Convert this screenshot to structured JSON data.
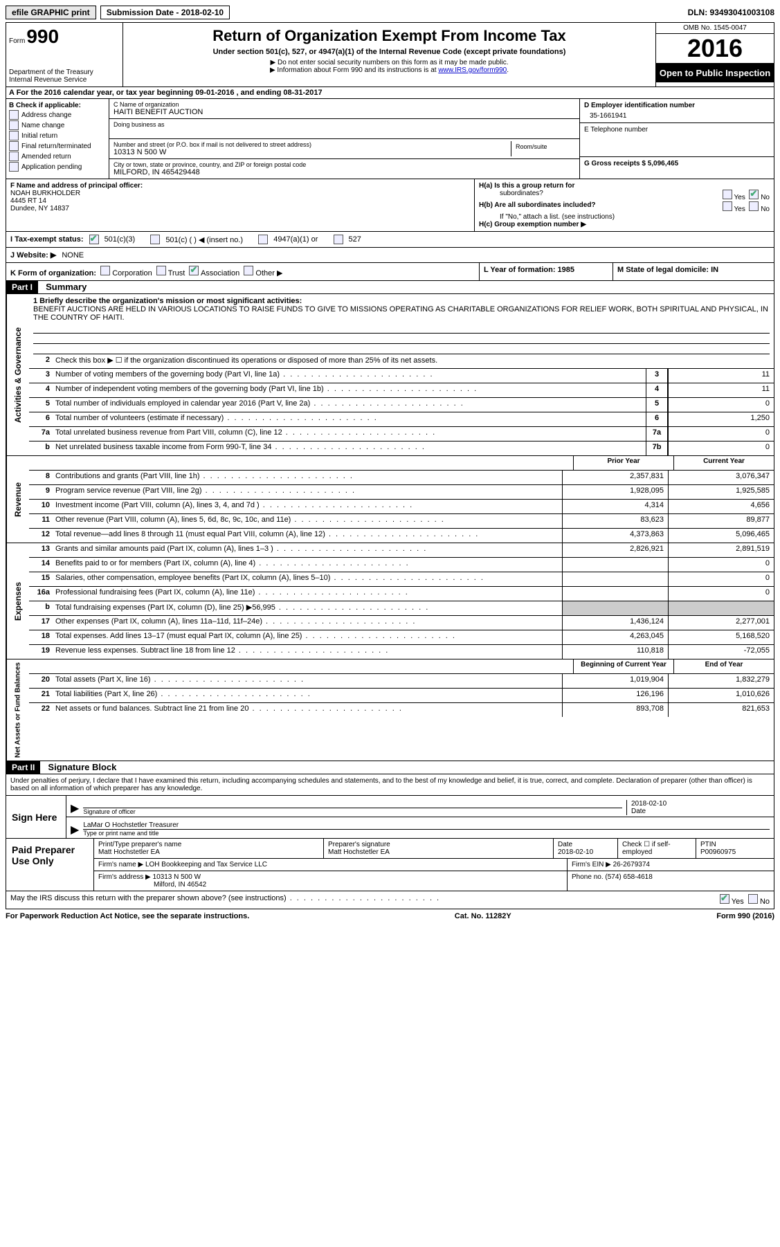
{
  "topbar": {
    "efile": "efile GRAPHIC print",
    "submission_label": "Submission Date - 2018-02-10",
    "dln": "DLN: 93493041003108"
  },
  "header": {
    "form_prefix": "Form",
    "form_no": "990",
    "dept1": "Department of the Treasury",
    "dept2": "Internal Revenue Service",
    "title": "Return of Organization Exempt From Income Tax",
    "subtitle": "Under section 501(c), 527, or 4947(a)(1) of the Internal Revenue Code (except private foundations)",
    "note1": "▶ Do not enter social security numbers on this form as it may be made public.",
    "note2_pre": "▶ Information about Form 990 and its instructions is at ",
    "note2_link": "www.IRS.gov/form990",
    "omb": "OMB No. 1545-0047",
    "year": "2016",
    "inspect": "Open to Public Inspection"
  },
  "lineA": "A  For the 2016 calendar year, or tax year beginning 09-01-2016   , and ending 08-31-2017",
  "sectionB": {
    "title": "B Check if applicable:",
    "opts": [
      "Address change",
      "Name change",
      "Initial return",
      "Final return/terminated",
      "Amended return",
      "Application pending"
    ]
  },
  "sectionC": {
    "name_lbl": "C Name of organization",
    "name": "HAITI BENEFIT AUCTION",
    "dba_lbl": "Doing business as",
    "street_lbl": "Number and street (or P.O. box if mail is not delivered to street address)",
    "room_lbl": "Room/suite",
    "street": "10313 N 500 W",
    "city_lbl": "City or town, state or province, country, and ZIP or foreign postal code",
    "city": "MILFORD, IN  465429448"
  },
  "sectionD": {
    "ein_lbl": "D Employer identification number",
    "ein": "35-1661941",
    "tel_lbl": "E Telephone number",
    "gross_lbl": "G Gross receipts $ 5,096,465"
  },
  "sectionF": {
    "lbl": "F Name and address of principal officer:",
    "name": "NOAH BURKHOLDER",
    "addr1": "4445 RT 14",
    "addr2": "Dundee, NY  14837"
  },
  "sectionH": {
    "ha": "H(a)  Is this a group return for",
    "ha2": "subordinates?",
    "hb": "H(b)  Are all subordinates included?",
    "hb2": "If \"No,\" attach a list. (see instructions)",
    "hc": "H(c)  Group exemption number ▶",
    "yes": "Yes",
    "no": "No"
  },
  "lineI": {
    "lbl": "I  Tax-exempt status:",
    "o1": "501(c)(3)",
    "o2": "501(c) (  ) ◀ (insert no.)",
    "o3": "4947(a)(1) or",
    "o4": "527"
  },
  "lineJ": {
    "lbl": "J  Website: ▶",
    "val": "NONE"
  },
  "lineK": {
    "lbl": "K Form of organization:",
    "opts": [
      "Corporation",
      "Trust",
      "Association",
      "Other ▶"
    ],
    "L": "L Year of formation: 1985",
    "M": "M State of legal domicile: IN"
  },
  "part1": {
    "hdr": "Part I",
    "title": "Summary"
  },
  "governance": {
    "side": "Activities & Governance",
    "l1_lbl": "1  Briefly describe the organization's mission or most significant activities:",
    "l1_text": "BENEFIT AUCTIONS ARE HELD IN VARIOUS LOCATIONS TO RAISE FUNDS TO GIVE TO MISSIONS OPERATING AS CHARITABLE ORGANIZATIONS FOR RELIEF WORK, BOTH SPIRITUAL AND PHYSICAL, IN THE COUNTRY OF HAITI.",
    "l2": "Check this box ▶ ☐  if the organization discontinued its operations or disposed of more than 25% of its net assets.",
    "rows": [
      {
        "n": "3",
        "d": "Number of voting members of the governing body (Part VI, line 1a)",
        "b": "3",
        "v": "11"
      },
      {
        "n": "4",
        "d": "Number of independent voting members of the governing body (Part VI, line 1b)",
        "b": "4",
        "v": "11"
      },
      {
        "n": "5",
        "d": "Total number of individuals employed in calendar year 2016 (Part V, line 2a)",
        "b": "5",
        "v": "0"
      },
      {
        "n": "6",
        "d": "Total number of volunteers (estimate if necessary)",
        "b": "6",
        "v": "1,250"
      },
      {
        "n": "7a",
        "d": "Total unrelated business revenue from Part VIII, column (C), line 12",
        "b": "7a",
        "v": "0"
      },
      {
        "n": "b",
        "d": "Net unrelated business taxable income from Form 990-T, line 34",
        "b": "7b",
        "v": "0"
      }
    ]
  },
  "revenue": {
    "side": "Revenue",
    "hdr_prior": "Prior Year",
    "hdr_curr": "Current Year",
    "rows": [
      {
        "n": "8",
        "d": "Contributions and grants (Part VIII, line 1h)",
        "p": "2,357,831",
        "c": "3,076,347"
      },
      {
        "n": "9",
        "d": "Program service revenue (Part VIII, line 2g)",
        "p": "1,928,095",
        "c": "1,925,585"
      },
      {
        "n": "10",
        "d": "Investment income (Part VIII, column (A), lines 3, 4, and 7d )",
        "p": "4,314",
        "c": "4,656"
      },
      {
        "n": "11",
        "d": "Other revenue (Part VIII, column (A), lines 5, 6d, 8c, 9c, 10c, and 11e)",
        "p": "83,623",
        "c": "89,877"
      },
      {
        "n": "12",
        "d": "Total revenue—add lines 8 through 11 (must equal Part VIII, column (A), line 12)",
        "p": "4,373,863",
        "c": "5,096,465"
      }
    ]
  },
  "expenses": {
    "side": "Expenses",
    "rows": [
      {
        "n": "13",
        "d": "Grants and similar amounts paid (Part IX, column (A), lines 1–3 )",
        "p": "2,826,921",
        "c": "2,891,519"
      },
      {
        "n": "14",
        "d": "Benefits paid to or for members (Part IX, column (A), line 4)",
        "p": "",
        "c": "0"
      },
      {
        "n": "15",
        "d": "Salaries, other compensation, employee benefits (Part IX, column (A), lines 5–10)",
        "p": "",
        "c": "0"
      },
      {
        "n": "16a",
        "d": "Professional fundraising fees (Part IX, column (A), line 11e)",
        "p": "",
        "c": "0"
      },
      {
        "n": "b",
        "d": "Total fundraising expenses (Part IX, column (D), line 25) ▶56,995",
        "p": "gray",
        "c": "gray"
      },
      {
        "n": "17",
        "d": "Other expenses (Part IX, column (A), lines 11a–11d, 11f–24e)",
        "p": "1,436,124",
        "c": "2,277,001"
      },
      {
        "n": "18",
        "d": "Total expenses. Add lines 13–17 (must equal Part IX, column (A), line 25)",
        "p": "4,263,045",
        "c": "5,168,520"
      },
      {
        "n": "19",
        "d": "Revenue less expenses. Subtract line 18 from line 12",
        "p": "110,818",
        "c": "-72,055"
      }
    ]
  },
  "netassets": {
    "side": "Net Assets or Fund Balances",
    "hdr_prior": "Beginning of Current Year",
    "hdr_curr": "End of Year",
    "rows": [
      {
        "n": "20",
        "d": "Total assets (Part X, line 16)",
        "p": "1,019,904",
        "c": "1,832,279"
      },
      {
        "n": "21",
        "d": "Total liabilities (Part X, line 26)",
        "p": "126,196",
        "c": "1,010,626"
      },
      {
        "n": "22",
        "d": "Net assets or fund balances. Subtract line 21 from line 20",
        "p": "893,708",
        "c": "821,653"
      }
    ]
  },
  "part2": {
    "hdr": "Part II",
    "title": "Signature Block"
  },
  "sign": {
    "decl": "Under penalties of perjury, I declare that I have examined this return, including accompanying schedules and statements, and to the best of my knowledge and belief, it is true, correct, and complete. Declaration of preparer (other than officer) is based on all information of which preparer has any knowledge.",
    "here": "Sign Here",
    "sig_lbl": "Signature of officer",
    "date_lbl": "Date",
    "date": "2018-02-10",
    "name": "LaMar O Hochstetler Treasurer",
    "name_lbl": "Type or print name and title"
  },
  "prep": {
    "lbl": "Paid Preparer Use Only",
    "r1": {
      "c1_lbl": "Print/Type preparer's name",
      "c1": "Matt Hochstetler EA",
      "c2_lbl": "Preparer's signature",
      "c2": "Matt Hochstetler EA",
      "c3_lbl": "Date",
      "c3": "2018-02-10",
      "c4": "Check ☐ if self-employed",
      "c5_lbl": "PTIN",
      "c5": "P00960975"
    },
    "r2": {
      "c1_lbl": "Firm's name      ▶",
      "c1": "LOH Bookkeeping and Tax Service LLC",
      "c2_lbl": "Firm's EIN ▶",
      "c2": "26-2679374"
    },
    "r3": {
      "c1_lbl": "Firm's address ▶",
      "c1": "10313 N 500 W",
      "c1b": "Milford, IN  46542",
      "c2_lbl": "Phone no.",
      "c2": "(574) 658-4618"
    }
  },
  "discuss": {
    "q": "May the IRS discuss this return with the preparer shown above? (see instructions)",
    "yes": "Yes",
    "no": "No"
  },
  "footer": {
    "left": "For Paperwork Reduction Act Notice, see the separate instructions.",
    "mid": "Cat. No. 11282Y",
    "right": "Form 990 (2016)"
  }
}
